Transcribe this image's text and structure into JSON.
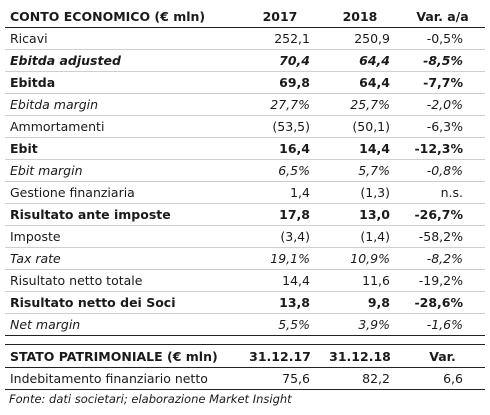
{
  "income": {
    "header": [
      "CONTO ECONOMICO (€ mln)",
      "2017",
      "2018",
      "Var. a/a"
    ],
    "rows": [
      {
        "label": "Ricavi",
        "v2017": "252,1",
        "v2018": "250,9",
        "var": "-0,5%",
        "style": "normal"
      },
      {
        "label": "Ebitda adjusted",
        "v2017": "70,4",
        "v2018": "64,4",
        "var": "-8,5%",
        "style": "bolditalic"
      },
      {
        "label": "Ebitda",
        "v2017": "69,8",
        "v2018": "64,4",
        "var": "-7,7%",
        "style": "bold"
      },
      {
        "label": "Ebitda margin",
        "v2017": "27,7%",
        "v2018": "25,7%",
        "var": "-2,0%",
        "style": "italic"
      },
      {
        "label": "Ammortamenti",
        "v2017": "(53,5)",
        "v2018": "(50,1)",
        "var": "-6,3%",
        "style": "normal"
      },
      {
        "label": "Ebit",
        "v2017": "16,4",
        "v2018": "14,4",
        "var": "-12,3%",
        "style": "bold"
      },
      {
        "label": "Ebit margin",
        "v2017": "6,5%",
        "v2018": "5,7%",
        "var": "-0,8%",
        "style": "italic"
      },
      {
        "label": "Gestione finanziaria",
        "v2017": "1,4",
        "v2018": "(1,3)",
        "var": "n.s.",
        "style": "normal"
      },
      {
        "label": "Risultato ante imposte",
        "v2017": "17,8",
        "v2018": "13,0",
        "var": "-26,7%",
        "style": "bold"
      },
      {
        "label": "Imposte",
        "v2017": "(3,4)",
        "v2018": "(1,4)",
        "var": "-58,2%",
        "style": "normal"
      },
      {
        "label": "Tax rate",
        "v2017": "19,1%",
        "v2018": "10,9%",
        "var": "-8,2%",
        "style": "italic"
      },
      {
        "label": "Risultato netto totale",
        "v2017": "14,4",
        "v2018": "11,6",
        "var": "-19,2%",
        "style": "normal"
      },
      {
        "label": "Risultato netto dei Soci",
        "v2017": "13,8",
        "v2018": "9,8",
        "var": "-28,6%",
        "style": "bold"
      },
      {
        "label": "Net margin",
        "v2017": "5,5%",
        "v2018": "3,9%",
        "var": "-1,6%",
        "style": "italic"
      }
    ]
  },
  "balance": {
    "header": [
      "STATO PATRIMONIALE (€ mln)",
      "31.12.17",
      "31.12.18",
      "Var."
    ],
    "rows": [
      {
        "label": "Indebitamento finanziario netto",
        "v2017": "75,6",
        "v2018": "82,2",
        "var": "6,6",
        "style": "normal"
      }
    ]
  },
  "source": "Fonte: dati societari; elaborazione Market Insight"
}
